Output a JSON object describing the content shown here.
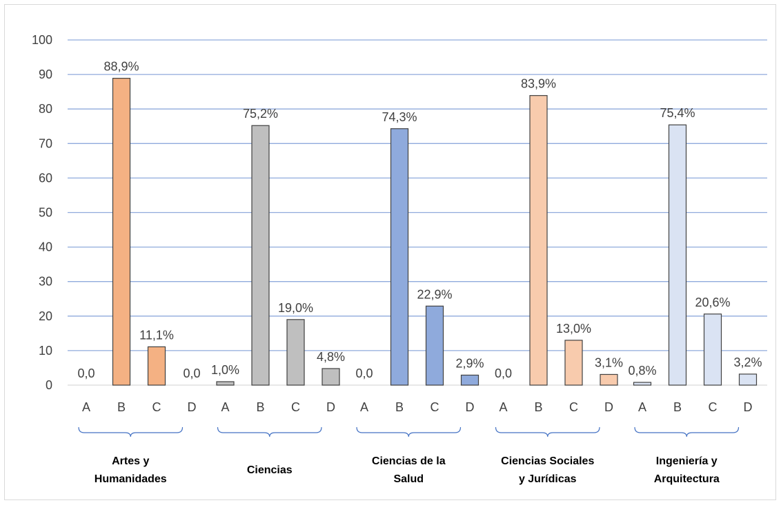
{
  "chart_data": {
    "type": "bar",
    "title": "",
    "xlabel": "",
    "ylabel": "",
    "ylim": [
      0,
      100
    ],
    "yticks": [
      "0",
      "10",
      "20",
      "30",
      "40",
      "50",
      "60",
      "70",
      "80",
      "90",
      "100"
    ],
    "grid": true,
    "legend": "none",
    "groups": [
      {
        "name_lines": [
          "Artes y",
          "Humanidades"
        ],
        "color": "#f4b183",
        "categories": [
          "A",
          "B",
          "C",
          "D"
        ],
        "values": [
          0.0,
          88.9,
          11.1,
          0.0
        ],
        "labels": [
          "0,0",
          "88,9%",
          "11,1%",
          "0,0"
        ]
      },
      {
        "name_lines": [
          "Ciencias"
        ],
        "color": "#bfbfbf",
        "categories": [
          "A",
          "B",
          "C",
          "D"
        ],
        "values": [
          1.0,
          75.2,
          19.0,
          4.8
        ],
        "labels": [
          "1,0%",
          "75,2%",
          "19,0%",
          "4,8%"
        ]
      },
      {
        "name_lines": [
          "Ciencias de la",
          "Salud"
        ],
        "color": "#8faadc",
        "categories": [
          "A",
          "B",
          "C",
          "D"
        ],
        "values": [
          0.0,
          74.3,
          22.9,
          2.9
        ],
        "labels": [
          "0,0",
          "74,3%",
          "22,9%",
          "2,9%"
        ]
      },
      {
        "name_lines": [
          "Ciencias Sociales",
          "y Jurídicas"
        ],
        "color": "#f8cbad",
        "categories": [
          "A",
          "B",
          "C",
          "D"
        ],
        "values": [
          0.0,
          83.9,
          13.0,
          3.1
        ],
        "labels": [
          "0,0",
          "83,9%",
          "13,0%",
          "3,1%"
        ]
      },
      {
        "name_lines": [
          "Ingeniería y",
          "Arquitectura"
        ],
        "color": "#dae3f3",
        "categories": [
          "A",
          "B",
          "C",
          "D"
        ],
        "values": [
          0.8,
          75.4,
          20.6,
          3.2
        ],
        "labels": [
          "0,8%",
          "75,4%",
          "20,6%",
          "3,2%"
        ]
      }
    ],
    "colors": {
      "gridline": "#8faadc",
      "bar_outline": "#404040",
      "brace": "#4472c4"
    }
  }
}
